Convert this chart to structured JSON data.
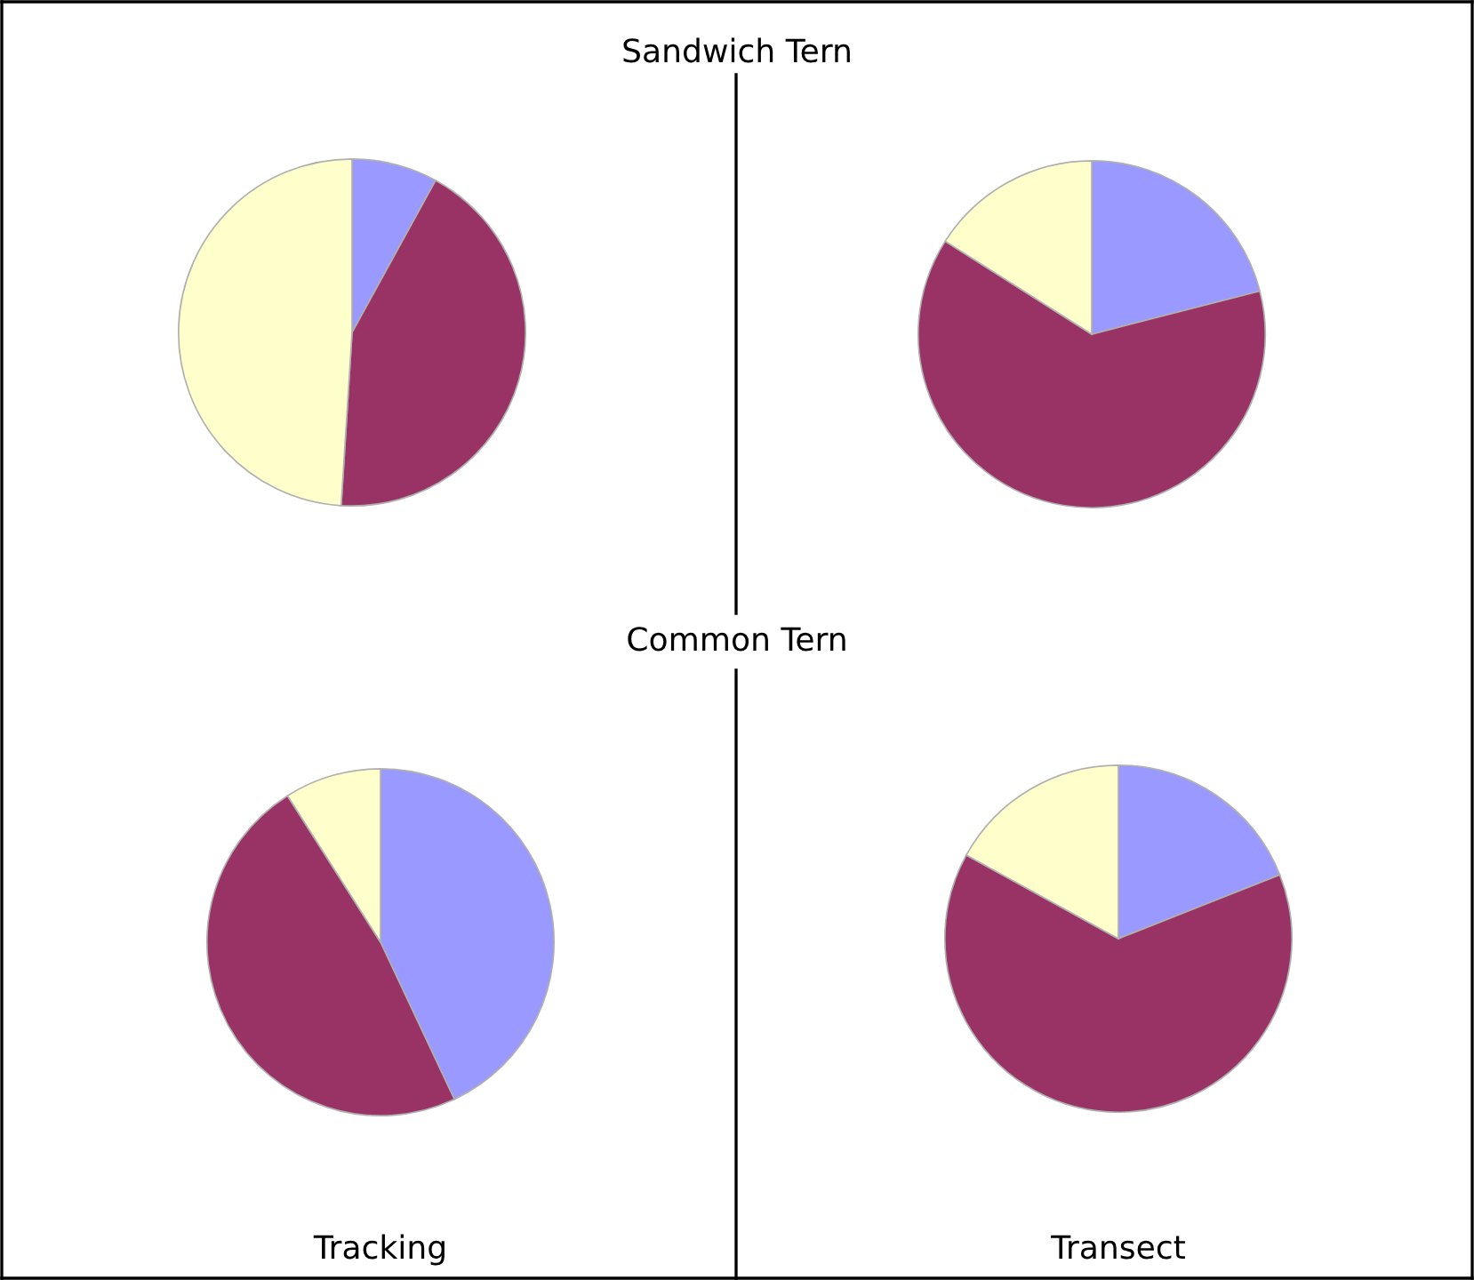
{
  "chart_data": [
    {
      "type": "pie",
      "title": "Sandwich Tern",
      "categories": [
        null,
        null,
        null
      ],
      "values": [
        8,
        43,
        49
      ],
      "colors": [
        "#9999ff",
        "#993366",
        "#ffffcc"
      ]
    },
    {
      "type": "pie",
      "categories": [
        null,
        null,
        null
      ],
      "values": [
        21,
        63,
        16
      ],
      "colors": [
        "#9999ff",
        "#993366",
        "#ffffcc"
      ]
    },
    {
      "type": "pie",
      "title": "Common Tern",
      "xlabel": "Tracking",
      "categories": [
        null,
        null,
        null
      ],
      "values": [
        43,
        48,
        9
      ],
      "colors": [
        "#9999ff",
        "#993366",
        "#ffffcc"
      ]
    },
    {
      "type": "pie",
      "xlabel": "Transect",
      "categories": [
        null,
        null,
        null
      ],
      "values": [
        19,
        64,
        17
      ],
      "colors": [
        "#9999ff",
        "#993366",
        "#ffffcc"
      ]
    }
  ]
}
